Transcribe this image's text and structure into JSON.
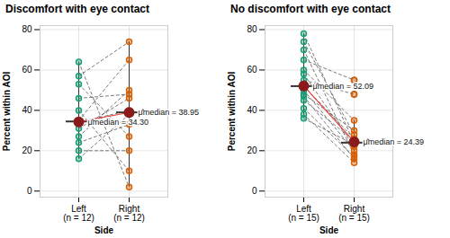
{
  "chart_data": [
    {
      "type": "boxplot",
      "title": "Discomfort with eye contact",
      "x_label": "Side",
      "y_label": "Percent within AOI",
      "categories": [
        "Left\n(n = 12)",
        "Right\n(n = 12)"
      ],
      "values": [
        [
          64,
          57,
          53,
          46,
          40,
          35,
          34,
          31,
          27,
          24,
          20,
          16
        ],
        [
          2,
          74,
          27,
          48,
          10,
          65,
          40,
          46,
          50,
          33,
          20,
          38
        ]
      ],
      "colors": [
        "#1b9e77",
        "#d95f02"
      ],
      "medians": [
        34.3,
        38.95
      ],
      "median_labels": [
        "μ̂median = 34.30",
        "μ̂median = 38.95"
      ],
      "ylim": [
        -3,
        82
      ],
      "yticks": [
        0,
        20,
        40,
        60,
        80
      ],
      "grid": true
    },
    {
      "type": "boxplot",
      "title": "No discomfort with eye contact",
      "x_label": "Side",
      "y_label": "Percent within AOI",
      "categories": [
        "Left\n(n = 15)",
        "Right\n(n = 15)"
      ],
      "values": [
        [
          78,
          74,
          70,
          65,
          60,
          58,
          55,
          52,
          50,
          48,
          47,
          45,
          41,
          38,
          36
        ],
        [
          24,
          28,
          18,
          55,
          35,
          22,
          48,
          26,
          20,
          30,
          16,
          25,
          17,
          14,
          23
        ]
      ],
      "colors": [
        "#1b9e77",
        "#d95f02"
      ],
      "medians": [
        52.09,
        24.39
      ],
      "median_labels": [
        "μ̂median = 52.09",
        "μ̂median = 24.39"
      ],
      "ylim": [
        -3,
        82
      ],
      "yticks": [
        0,
        20,
        40,
        60,
        80
      ],
      "grid": true
    }
  ]
}
